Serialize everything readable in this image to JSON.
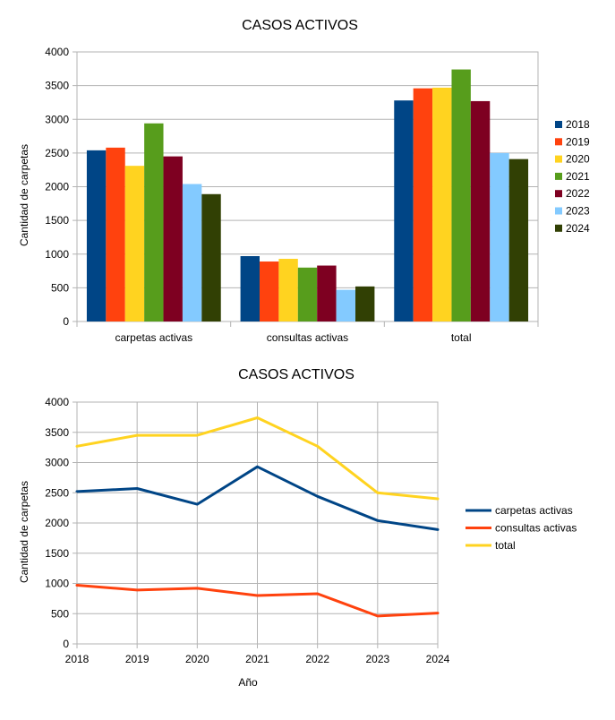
{
  "chart_data": [
    {
      "type": "bar",
      "title": "CASOS ACTIVOS",
      "xlabel": "",
      "ylabel": "Cantidad de carpetas",
      "ylim": [
        0,
        4000
      ],
      "yticks": [
        "0",
        "500",
        "1000",
        "1500",
        "2000",
        "2500",
        "3000",
        "3500",
        "4000"
      ],
      "categories": [
        "carpetas activas",
        "consultas activas",
        "total"
      ],
      "legend_position": "right",
      "series": [
        {
          "name": "2018",
          "color": "#004586",
          "values": [
            2540,
            970,
            3280
          ]
        },
        {
          "name": "2019",
          "color": "#ff420e",
          "values": [
            2580,
            890,
            3460
          ]
        },
        {
          "name": "2020",
          "color": "#ffd320",
          "values": [
            2310,
            930,
            3470
          ]
        },
        {
          "name": "2021",
          "color": "#579d1c",
          "values": [
            2940,
            800,
            3740
          ]
        },
        {
          "name": "2022",
          "color": "#7e0021",
          "values": [
            2450,
            830,
            3270
          ]
        },
        {
          "name": "2023",
          "color": "#83caff",
          "values": [
            2040,
            470,
            2500
          ]
        },
        {
          "name": "2024",
          "color": "#314004",
          "values": [
            1890,
            520,
            2410
          ]
        }
      ]
    },
    {
      "type": "line",
      "title": "CASOS ACTIVOS",
      "xlabel": "Año",
      "ylabel": "Cantidad de carpetas",
      "ylim": [
        0,
        4000
      ],
      "yticks": [
        "0",
        "500",
        "1000",
        "1500",
        "2000",
        "2500",
        "3000",
        "3500",
        "4000"
      ],
      "x": [
        "2018",
        "2019",
        "2020",
        "2021",
        "2022",
        "2023",
        "2024"
      ],
      "legend_position": "right",
      "series": [
        {
          "name": "carpetas activas",
          "color": "#004586",
          "values": [
            2520,
            2570,
            2310,
            2930,
            2440,
            2040,
            1890
          ]
        },
        {
          "name": "consultas activas",
          "color": "#ff420e",
          "values": [
            970,
            890,
            920,
            800,
            830,
            460,
            510
          ]
        },
        {
          "name": "total",
          "color": "#ffd320",
          "values": [
            3270,
            3450,
            3450,
            3740,
            3270,
            2500,
            2400
          ]
        }
      ]
    }
  ]
}
